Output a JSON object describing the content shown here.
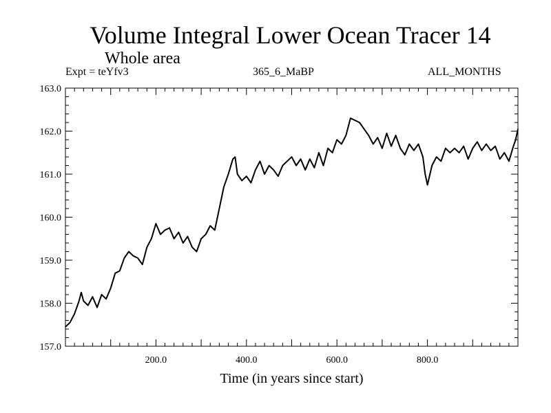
{
  "chart_data": {
    "type": "line",
    "title": "Volume Integral Lower Ocean Tracer 14",
    "subtitle": "Whole area",
    "header_left": "Expt = teYfv3",
    "header_center": "365_6_MaBP",
    "header_right": "ALL_MONTHS",
    "xlabel": "Time (in years since start)",
    "ylabel": "",
    "xlim": [
      0,
      1000
    ],
    "ylim": [
      157.0,
      163.0
    ],
    "x_ticks": [
      200,
      400,
      600,
      800
    ],
    "x_tick_labels": [
      "200.0",
      "400.0",
      "600.0",
      "800.0"
    ],
    "y_ticks": [
      157,
      158,
      159,
      160,
      161,
      162,
      163
    ],
    "y_tick_labels": [
      "157.0",
      "158.0",
      "159.0",
      "160.0",
      "161.0",
      "162.0",
      "163.0"
    ],
    "grid": false,
    "series": [
      {
        "name": "Volume Integral Lower Ocean Tracer 14",
        "color": "#000000",
        "x": [
          0,
          10,
          20,
          30,
          35,
          40,
          50,
          60,
          70,
          80,
          90,
          100,
          110,
          120,
          130,
          140,
          150,
          160,
          170,
          180,
          190,
          200,
          210,
          220,
          230,
          240,
          250,
          260,
          270,
          280,
          290,
          300,
          310,
          320,
          330,
          340,
          350,
          360,
          370,
          375,
          380,
          390,
          400,
          410,
          420,
          430,
          440,
          450,
          460,
          470,
          480,
          490,
          500,
          510,
          520,
          530,
          540,
          550,
          560,
          570,
          580,
          590,
          600,
          610,
          620,
          630,
          640,
          650,
          660,
          670,
          680,
          690,
          700,
          710,
          720,
          730,
          740,
          750,
          760,
          770,
          780,
          790,
          795,
          800,
          810,
          820,
          830,
          840,
          850,
          860,
          870,
          880,
          890,
          900,
          910,
          920,
          930,
          940,
          950,
          960,
          970,
          980,
          990,
          995,
          1000
        ],
        "values": [
          157.45,
          157.55,
          157.75,
          158.05,
          158.25,
          158.05,
          157.95,
          158.15,
          157.9,
          158.2,
          158.1,
          158.35,
          158.7,
          158.75,
          159.05,
          159.2,
          159.1,
          159.05,
          158.9,
          159.3,
          159.5,
          159.85,
          159.6,
          159.7,
          159.75,
          159.5,
          159.65,
          159.4,
          159.55,
          159.3,
          159.2,
          159.5,
          159.6,
          159.8,
          159.7,
          160.2,
          160.7,
          161.0,
          161.35,
          161.4,
          161.0,
          160.85,
          160.95,
          160.8,
          161.1,
          161.3,
          161.0,
          161.2,
          161.1,
          160.95,
          161.2,
          161.3,
          161.4,
          161.2,
          161.35,
          161.1,
          161.35,
          161.15,
          161.5,
          161.2,
          161.6,
          161.5,
          161.8,
          161.7,
          161.9,
          162.3,
          162.25,
          162.2,
          162.05,
          161.9,
          161.7,
          161.85,
          161.6,
          161.95,
          161.65,
          161.9,
          161.6,
          161.45,
          161.7,
          161.55,
          161.7,
          161.4,
          161.0,
          160.75,
          161.2,
          161.4,
          161.3,
          161.6,
          161.5,
          161.6,
          161.5,
          161.65,
          161.35,
          161.6,
          161.75,
          161.55,
          161.7,
          161.55,
          161.65,
          161.35,
          161.5,
          161.3,
          161.65,
          161.8,
          162.05
        ]
      }
    ]
  }
}
